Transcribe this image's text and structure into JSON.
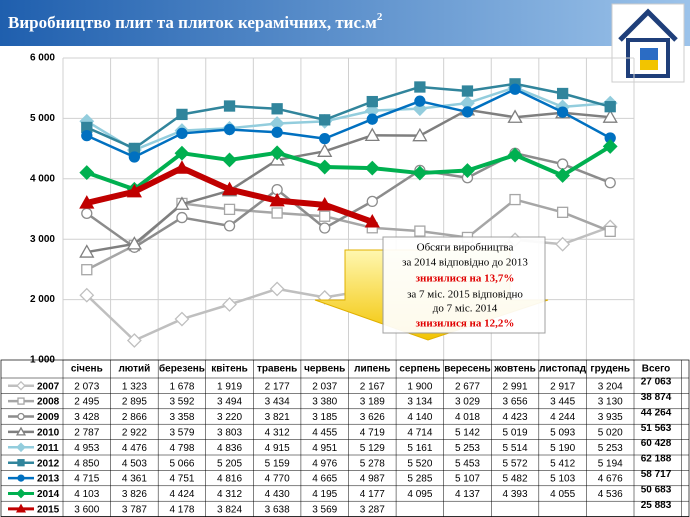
{
  "chart_data": {
    "type": "line",
    "title": "Виробництво плит та плиток керамічних, тис.м",
    "title_sup": "2",
    "categories": [
      "січень",
      "лютий",
      "березень",
      "квітень",
      "травень",
      "червень",
      "липень",
      "серпень",
      "вересень",
      "жовтень",
      "листопад",
      "грудень"
    ],
    "total_header": "Всего",
    "ylim": [
      1000,
      6000
    ],
    "yticks": [
      {
        "value": 1000,
        "label": "1 000"
      },
      {
        "value": 2000,
        "label": "2 000"
      },
      {
        "value": 3000,
        "label": "3 000"
      },
      {
        "value": 4000,
        "label": "4 000"
      },
      {
        "value": 5000,
        "label": "5 000"
      },
      {
        "value": 6000,
        "label": "6 000"
      }
    ],
    "grid": true,
    "series": [
      {
        "name": "2007",
        "color": "#bfbfbf",
        "marker": "diamond-open",
        "values": [
          2073,
          1323,
          1678,
          1919,
          2177,
          2037,
          2167,
          1900,
          2677,
          2991,
          2917,
          3204
        ],
        "value_labels": [
          "2 073",
          "1 323",
          "1 678",
          "1 919",
          "2 177",
          "2 037",
          "2 167",
          "1 900",
          "2 677",
          "2 991",
          "2 917",
          "3 204"
        ],
        "total_label": "27 063"
      },
      {
        "name": "2008",
        "color": "#a6a6a6",
        "marker": "square-open",
        "values": [
          2495,
          2895,
          3592,
          3494,
          3434,
          3380,
          3189,
          3134,
          3029,
          3656,
          3445,
          3130
        ],
        "value_labels": [
          "2 495",
          "2 895",
          "3 592",
          "3 494",
          "3 434",
          "3 380",
          "3 189",
          "3 134",
          "3 029",
          "3 656",
          "3 445",
          "3 130"
        ],
        "total_label": "38 874"
      },
      {
        "name": "2009",
        "color": "#8c8c8c",
        "marker": "circle-open",
        "values": [
          3428,
          2866,
          3358,
          3220,
          3821,
          3185,
          3626,
          4140,
          4018,
          4423,
          4244,
          3935
        ],
        "value_labels": [
          "3 428",
          "2 866",
          "3 358",
          "3 220",
          "3 821",
          "3 185",
          "3 626",
          "4 140",
          "4 018",
          "4 423",
          "4 244",
          "3 935"
        ],
        "total_label": "44 264"
      },
      {
        "name": "2010",
        "color": "#7f7f7f",
        "marker": "triangle-open",
        "values": [
          2787,
          2922,
          3579,
          3803,
          4312,
          4455,
          4719,
          4714,
          5142,
          5019,
          5093,
          5020
        ],
        "value_labels": [
          "2 787",
          "2 922",
          "3 579",
          "3 803",
          "4 312",
          "4 455",
          "4 719",
          "4 714",
          "5 142",
          "5 019",
          "5 093",
          "5 020"
        ],
        "total_label": "51 563"
      },
      {
        "name": "2011",
        "color": "#93cddd",
        "marker": "diamond",
        "values": [
          4953,
          4476,
          4798,
          4836,
          4915,
          4951,
          5129,
          5161,
          5253,
          5514,
          5190,
          5253
        ],
        "value_labels": [
          "4 953",
          "4 476",
          "4 798",
          "4 836",
          "4 915",
          "4 951",
          "5 129",
          "5 161",
          "5 253",
          "5 514",
          "5 190",
          "5 253"
        ],
        "total_label": "60 428"
      },
      {
        "name": "2012",
        "color": "#31859c",
        "marker": "square",
        "values": [
          4850,
          4503,
          5066,
          5205,
          5159,
          4976,
          5278,
          5520,
          5453,
          5572,
          5412,
          5194
        ],
        "value_labels": [
          "4 850",
          "4 503",
          "5 066",
          "5 205",
          "5 159",
          "4 976",
          "5 278",
          "5 520",
          "5 453",
          "5 572",
          "5 412",
          "5 194"
        ],
        "total_label": "62 188"
      },
      {
        "name": "2013",
        "color": "#0070c0",
        "marker": "circle",
        "values": [
          4715,
          4361,
          4751,
          4816,
          4770,
          4665,
          4987,
          5285,
          5107,
          5482,
          5103,
          4676
        ],
        "value_labels": [
          "4 715",
          "4 361",
          "4 751",
          "4 816",
          "4 770",
          "4 665",
          "4 987",
          "5 285",
          "5 107",
          "5 482",
          "5 103",
          "4 676"
        ],
        "total_label": "58 717"
      },
      {
        "name": "2014",
        "color": "#00b050",
        "marker": "diamond",
        "values": [
          4103,
          3826,
          4424,
          4312,
          4430,
          4195,
          4177,
          4095,
          4137,
          4393,
          4055,
          4536
        ],
        "value_labels": [
          "4 103",
          "3 826",
          "4 424",
          "4 312",
          "4 430",
          "4 195",
          "4 177",
          "4 095",
          "4 137",
          "4 393",
          "4 055",
          "4 536"
        ],
        "total_label": "50 683"
      },
      {
        "name": "2015",
        "color": "#c00000",
        "marker": "triangle",
        "values": [
          3600,
          3787,
          4178,
          3824,
          3638,
          3569,
          3287,
          null,
          null,
          null,
          null,
          null
        ],
        "value_labels": [
          "3 600",
          "3 787",
          "4 178",
          "3 824",
          "3 638",
          "3 569",
          "3 287",
          null,
          null,
          null,
          null,
          null
        ],
        "total_label": "25 883"
      }
    ],
    "annotation": [
      "Обсяги виробництва",
      "за 2014 відповідно до 2013",
      "знизилися на 13,7%",
      "за 7 міс. 2015 відповідно",
      "до 7 міс. 2014",
      "знизилися на 12,2%"
    ]
  }
}
